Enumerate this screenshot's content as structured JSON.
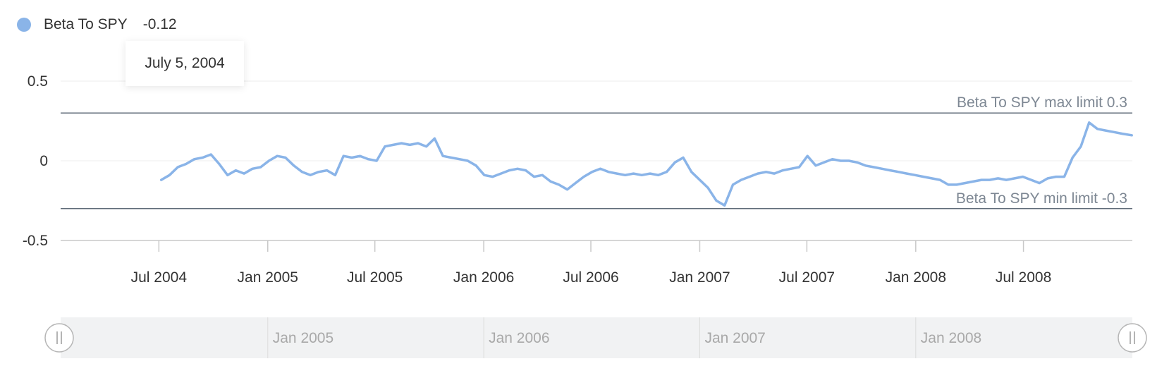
{
  "legend": {
    "name": "Beta To SPY",
    "value": "-0.12",
    "color": "#8ab4e8"
  },
  "tooltip": {
    "date": "July 5, 2004"
  },
  "navigator": {
    "ticks": [
      "Jan 2005",
      "Jan 2006",
      "Jan 2007",
      "Jan 2008"
    ]
  },
  "chart_data": {
    "type": "line",
    "title": "",
    "xlabel": "",
    "ylabel": "",
    "ylim": [
      -0.5,
      0.5
    ],
    "yticks": [
      {
        "value": 0.5,
        "label": "0.5"
      },
      {
        "value": 0,
        "label": "0"
      },
      {
        "value": -0.5,
        "label": "-0.5"
      }
    ],
    "xlim": [
      "2004-01-17",
      "2009-01-01"
    ],
    "xticks": [
      {
        "date": "2004-07-01",
        "label": "Jul 2004"
      },
      {
        "date": "2005-01-01",
        "label": "Jan 2005"
      },
      {
        "date": "2005-07-01",
        "label": "Jul 2005"
      },
      {
        "date": "2006-01-01",
        "label": "Jan 2006"
      },
      {
        "date": "2006-07-01",
        "label": "Jul 2006"
      },
      {
        "date": "2007-01-01",
        "label": "Jan 2007"
      },
      {
        "date": "2007-07-01",
        "label": "Jul 2007"
      },
      {
        "date": "2008-01-01",
        "label": "Jan 2008"
      },
      {
        "date": "2008-07-01",
        "label": "Jul 2008"
      }
    ],
    "plot_lines": [
      {
        "value": 0.3,
        "label": "Beta To SPY max limit 0.3"
      },
      {
        "value": -0.3,
        "label": "Beta To SPY min limit -0.3"
      }
    ],
    "series": [
      {
        "name": "Beta To SPY",
        "color": "#8ab4e8",
        "points": [
          [
            "2004-07-05",
            -0.12
          ],
          [
            "2004-07-19",
            -0.09
          ],
          [
            "2004-08-02",
            -0.04
          ],
          [
            "2004-08-16",
            -0.02
          ],
          [
            "2004-08-30",
            0.01
          ],
          [
            "2004-09-13",
            0.02
          ],
          [
            "2004-09-27",
            0.04
          ],
          [
            "2004-10-11",
            -0.02
          ],
          [
            "2004-10-25",
            -0.09
          ],
          [
            "2004-11-08",
            -0.06
          ],
          [
            "2004-11-22",
            -0.08
          ],
          [
            "2004-12-06",
            -0.05
          ],
          [
            "2004-12-20",
            -0.04
          ],
          [
            "2005-01-03",
            0.0
          ],
          [
            "2005-01-17",
            0.03
          ],
          [
            "2005-01-31",
            0.02
          ],
          [
            "2005-02-14",
            -0.03
          ],
          [
            "2005-02-28",
            -0.07
          ],
          [
            "2005-03-14",
            -0.09
          ],
          [
            "2005-03-28",
            -0.07
          ],
          [
            "2005-04-11",
            -0.06
          ],
          [
            "2005-04-25",
            -0.09
          ],
          [
            "2005-05-09",
            0.03
          ],
          [
            "2005-05-23",
            0.02
          ],
          [
            "2005-06-06",
            0.03
          ],
          [
            "2005-06-20",
            0.01
          ],
          [
            "2005-07-04",
            0.0
          ],
          [
            "2005-07-18",
            0.09
          ],
          [
            "2005-08-01",
            0.1
          ],
          [
            "2005-08-15",
            0.11
          ],
          [
            "2005-08-29",
            0.1
          ],
          [
            "2005-09-12",
            0.11
          ],
          [
            "2005-09-26",
            0.09
          ],
          [
            "2005-10-10",
            0.14
          ],
          [
            "2005-10-24",
            0.03
          ],
          [
            "2005-11-07",
            0.02
          ],
          [
            "2005-11-21",
            0.01
          ],
          [
            "2005-12-05",
            0.0
          ],
          [
            "2005-12-19",
            -0.03
          ],
          [
            "2006-01-02",
            -0.09
          ],
          [
            "2006-01-16",
            -0.1
          ],
          [
            "2006-01-30",
            -0.08
          ],
          [
            "2006-02-13",
            -0.06
          ],
          [
            "2006-02-27",
            -0.05
          ],
          [
            "2006-03-13",
            -0.06
          ],
          [
            "2006-03-27",
            -0.1
          ],
          [
            "2006-04-10",
            -0.09
          ],
          [
            "2006-04-24",
            -0.13
          ],
          [
            "2006-05-08",
            -0.15
          ],
          [
            "2006-05-22",
            -0.18
          ],
          [
            "2006-06-05",
            -0.14
          ],
          [
            "2006-06-19",
            -0.1
          ],
          [
            "2006-07-03",
            -0.07
          ],
          [
            "2006-07-17",
            -0.05
          ],
          [
            "2006-07-31",
            -0.07
          ],
          [
            "2006-08-14",
            -0.08
          ],
          [
            "2006-08-28",
            -0.09
          ],
          [
            "2006-09-11",
            -0.08
          ],
          [
            "2006-09-25",
            -0.09
          ],
          [
            "2006-10-09",
            -0.08
          ],
          [
            "2006-10-23",
            -0.09
          ],
          [
            "2006-11-06",
            -0.07
          ],
          [
            "2006-11-20",
            -0.01
          ],
          [
            "2006-12-04",
            0.02
          ],
          [
            "2006-12-18",
            -0.07
          ],
          [
            "2007-01-01",
            -0.12
          ],
          [
            "2007-01-15",
            -0.17
          ],
          [
            "2007-01-29",
            -0.25
          ],
          [
            "2007-02-12",
            -0.28
          ],
          [
            "2007-02-26",
            -0.15
          ],
          [
            "2007-03-12",
            -0.12
          ],
          [
            "2007-03-26",
            -0.1
          ],
          [
            "2007-04-09",
            -0.08
          ],
          [
            "2007-04-23",
            -0.07
          ],
          [
            "2007-05-07",
            -0.08
          ],
          [
            "2007-05-21",
            -0.06
          ],
          [
            "2007-06-04",
            -0.05
          ],
          [
            "2007-06-18",
            -0.04
          ],
          [
            "2007-07-02",
            0.03
          ],
          [
            "2007-07-16",
            -0.03
          ],
          [
            "2007-07-30",
            -0.01
          ],
          [
            "2007-08-13",
            0.01
          ],
          [
            "2007-08-27",
            0.0
          ],
          [
            "2007-09-10",
            0.0
          ],
          [
            "2007-09-24",
            -0.01
          ],
          [
            "2007-10-08",
            -0.03
          ],
          [
            "2007-10-22",
            -0.04
          ],
          [
            "2007-11-05",
            -0.05
          ],
          [
            "2007-11-19",
            -0.06
          ],
          [
            "2007-12-03",
            -0.07
          ],
          [
            "2007-12-17",
            -0.08
          ],
          [
            "2007-12-31",
            -0.09
          ],
          [
            "2008-01-14",
            -0.1
          ],
          [
            "2008-01-28",
            -0.11
          ],
          [
            "2008-02-11",
            -0.12
          ],
          [
            "2008-02-25",
            -0.15
          ],
          [
            "2008-03-10",
            -0.15
          ],
          [
            "2008-03-24",
            -0.14
          ],
          [
            "2008-04-07",
            -0.13
          ],
          [
            "2008-04-21",
            -0.12
          ],
          [
            "2008-05-05",
            -0.12
          ],
          [
            "2008-05-19",
            -0.11
          ],
          [
            "2008-06-02",
            -0.12
          ],
          [
            "2008-06-16",
            -0.11
          ],
          [
            "2008-06-30",
            -0.1
          ],
          [
            "2008-07-14",
            -0.12
          ],
          [
            "2008-07-28",
            -0.14
          ],
          [
            "2008-08-11",
            -0.11
          ],
          [
            "2008-08-25",
            -0.1
          ],
          [
            "2008-09-08",
            -0.1
          ],
          [
            "2008-09-22",
            0.02
          ],
          [
            "2008-10-06",
            0.09
          ],
          [
            "2008-10-20",
            0.24
          ],
          [
            "2008-11-03",
            0.2
          ],
          [
            "2008-11-17",
            0.19
          ],
          [
            "2008-12-01",
            0.18
          ],
          [
            "2008-12-15",
            0.17
          ],
          [
            "2008-12-31",
            0.16
          ]
        ]
      }
    ],
    "grid": true,
    "legend_position": "top-left"
  }
}
